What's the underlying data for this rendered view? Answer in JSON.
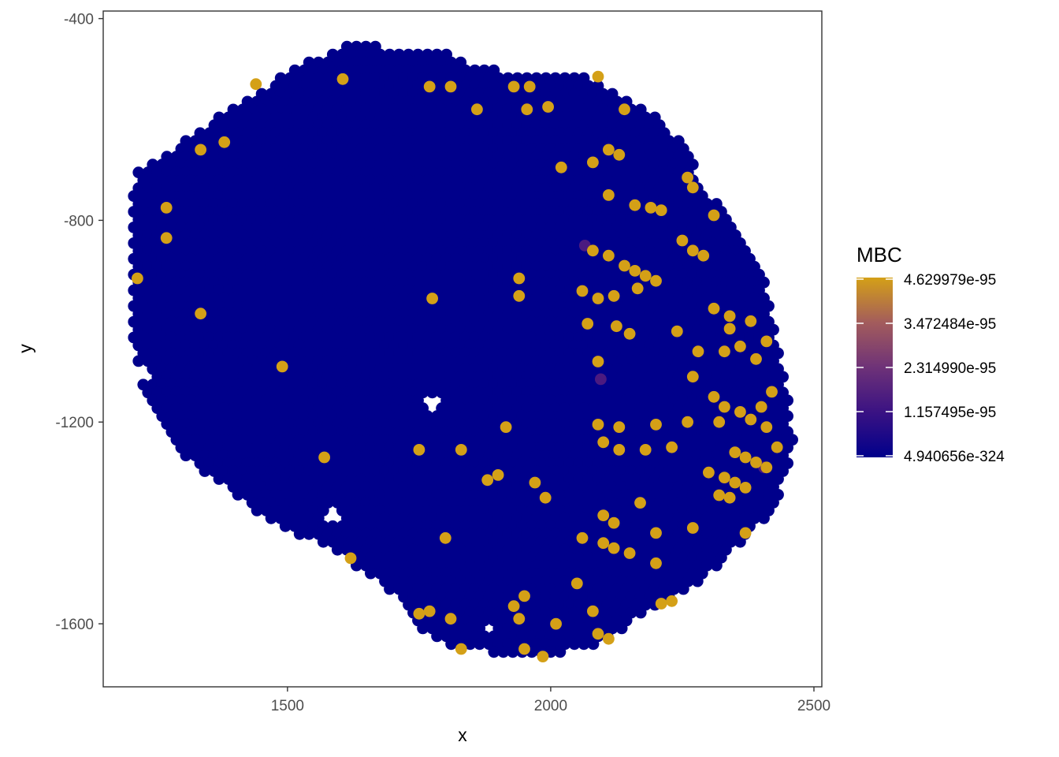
{
  "chart_data": {
    "type": "scatter",
    "title": "",
    "xlabel": "x",
    "ylabel": "y",
    "xlim": [
      1150,
      2515
    ],
    "ylim": [
      -1725,
      -385
    ],
    "x_ticks": [
      1500,
      2000,
      2500
    ],
    "x_tick_labels": [
      "1500",
      "2000",
      "2500"
    ],
    "y_ticks": [
      -400,
      -800,
      -1200,
      -1600
    ],
    "y_tick_labels": [
      "-400",
      "-800",
      "-1200",
      "-1600"
    ],
    "grid": false,
    "panel_border": true,
    "colors": {
      "low": "#00008B",
      "high": "#D4A017"
    },
    "legend": {
      "title": "MBC",
      "placement": "right",
      "breaks": [
        "4.629979e-95",
        "3.472484e-95",
        "2.314990e-95",
        "1.157495e-95",
        "4.940656e-324"
      ]
    },
    "spot_spacing": 18,
    "tissue_outline": [
      [
        1210,
        -700
      ],
      [
        1280,
        -660
      ],
      [
        1360,
        -600
      ],
      [
        1440,
        -550
      ],
      [
        1500,
        -505
      ],
      [
        1560,
        -475
      ],
      [
        1640,
        -445
      ],
      [
        1720,
        -470
      ],
      [
        1790,
        -460
      ],
      [
        1860,
        -500
      ],
      [
        1960,
        -505
      ],
      [
        2060,
        -510
      ],
      [
        2150,
        -560
      ],
      [
        2210,
        -600
      ],
      [
        2260,
        -660
      ],
      [
        2290,
        -740
      ],
      [
        2330,
        -780
      ],
      [
        2380,
        -850
      ],
      [
        2405,
        -900
      ],
      [
        2420,
        -1000
      ],
      [
        2445,
        -1100
      ],
      [
        2460,
        -1230
      ],
      [
        2455,
        -1300
      ],
      [
        2420,
        -1370
      ],
      [
        2380,
        -1430
      ],
      [
        2330,
        -1470
      ],
      [
        2280,
        -1520
      ],
      [
        2220,
        -1560
      ],
      [
        2150,
        -1600
      ],
      [
        2090,
        -1640
      ],
      [
        2010,
        -1660
      ],
      [
        1940,
        -1670
      ],
      [
        1870,
        -1650
      ],
      [
        1800,
        -1640
      ],
      [
        1740,
        -1610
      ],
      [
        1700,
        -1540
      ],
      [
        1650,
        -1500
      ],
      [
        1600,
        -1460
      ],
      [
        1540,
        -1430
      ],
      [
        1470,
        -1400
      ],
      [
        1400,
        -1340
      ],
      [
        1330,
        -1290
      ],
      [
        1270,
        -1230
      ],
      [
        1220,
        -1120
      ],
      [
        1200,
        -1000
      ],
      [
        1200,
        -850
      ]
    ],
    "holes": [
      {
        "x": 1772,
        "y": -1163,
        "r": 14
      },
      {
        "x": 1233,
        "y": -1105,
        "r": 14
      },
      {
        "x": 1882,
        "y": -1610,
        "r": 16
      },
      {
        "x": 1583,
        "y": -1388,
        "r": 14
      }
    ],
    "high_points": [
      [
        1440,
        -530
      ],
      [
        1605,
        -520
      ],
      [
        1770,
        -535
      ],
      [
        1810,
        -535
      ],
      [
        1930,
        -535
      ],
      [
        1960,
        -535
      ],
      [
        2090,
        -515
      ],
      [
        1860,
        -580
      ],
      [
        1955,
        -580
      ],
      [
        1995,
        -575
      ],
      [
        2140,
        -580
      ],
      [
        1335,
        -660
      ],
      [
        1380,
        -645
      ],
      [
        1270,
        -775
      ],
      [
        1270,
        -835
      ],
      [
        2020,
        -695
      ],
      [
        2080,
        -685
      ],
      [
        2110,
        -660
      ],
      [
        2130,
        -670
      ],
      [
        2260,
        -715
      ],
      [
        2270,
        -735
      ],
      [
        2110,
        -750
      ],
      [
        2160,
        -770
      ],
      [
        2190,
        -775
      ],
      [
        2210,
        -780
      ],
      [
        2310,
        -790
      ],
      [
        2250,
        -840
      ],
      [
        2270,
        -860
      ],
      [
        2290,
        -870
      ],
      [
        2080,
        -860
      ],
      [
        2110,
        -870
      ],
      [
        2140,
        -890
      ],
      [
        2160,
        -900
      ],
      [
        2180,
        -910
      ],
      [
        2200,
        -920
      ],
      [
        1215,
        -915
      ],
      [
        1940,
        -915
      ],
      [
        1940,
        -950
      ],
      [
        1775,
        -955
      ],
      [
        2060,
        -940
      ],
      [
        2090,
        -955
      ],
      [
        2120,
        -950
      ],
      [
        2165,
        -935
      ],
      [
        2310,
        -975
      ],
      [
        2340,
        -990
      ],
      [
        2380,
        -1000
      ],
      [
        2410,
        -1040
      ],
      [
        2360,
        -1050
      ],
      [
        2330,
        -1060
      ],
      [
        1335,
        -985
      ],
      [
        2070,
        -1005
      ],
      [
        2125,
        -1010
      ],
      [
        2150,
        -1025
      ],
      [
        2240,
        -1020
      ],
      [
        2340,
        -1015
      ],
      [
        2280,
        -1060
      ],
      [
        2090,
        -1080
      ],
      [
        2390,
        -1075
      ],
      [
        1490,
        -1090
      ],
      [
        2270,
        -1110
      ],
      [
        2420,
        -1140
      ],
      [
        2310,
        -1150
      ],
      [
        2330,
        -1170
      ],
      [
        2360,
        -1180
      ],
      [
        2380,
        -1195
      ],
      [
        2400,
        -1170
      ],
      [
        2410,
        -1210
      ],
      [
        2320,
        -1200
      ],
      [
        2260,
        -1200
      ],
      [
        2200,
        -1205
      ],
      [
        2090,
        -1205
      ],
      [
        2130,
        -1210
      ],
      [
        1915,
        -1210
      ],
      [
        2230,
        -1250
      ],
      [
        2430,
        -1250
      ],
      [
        2350,
        -1260
      ],
      [
        2370,
        -1270
      ],
      [
        2390,
        -1280
      ],
      [
        2410,
        -1290
      ],
      [
        2330,
        -1310
      ],
      [
        2350,
        -1320
      ],
      [
        2370,
        -1330
      ],
      [
        2340,
        -1350
      ],
      [
        2320,
        -1345
      ],
      [
        2300,
        -1300
      ],
      [
        1750,
        -1255
      ],
      [
        1830,
        -1255
      ],
      [
        2100,
        -1240
      ],
      [
        2130,
        -1255
      ],
      [
        2180,
        -1255
      ],
      [
        1570,
        -1270
      ],
      [
        1880,
        -1315
      ],
      [
        1900,
        -1305
      ],
      [
        1970,
        -1320
      ],
      [
        1990,
        -1350
      ],
      [
        2170,
        -1360
      ],
      [
        2100,
        -1385
      ],
      [
        2120,
        -1400
      ],
      [
        2200,
        -1420
      ],
      [
        1800,
        -1430
      ],
      [
        2060,
        -1430
      ],
      [
        2100,
        -1440
      ],
      [
        2120,
        -1450
      ],
      [
        2150,
        -1460
      ],
      [
        2270,
        -1410
      ],
      [
        2370,
        -1420
      ],
      [
        1620,
        -1470
      ],
      [
        2200,
        -1480
      ],
      [
        2050,
        -1520
      ],
      [
        1950,
        -1545
      ],
      [
        2080,
        -1575
      ],
      [
        2210,
        -1560
      ],
      [
        2230,
        -1555
      ],
      [
        1750,
        -1580
      ],
      [
        1770,
        -1575
      ],
      [
        1810,
        -1590
      ],
      [
        1930,
        -1565
      ],
      [
        1940,
        -1590
      ],
      [
        2010,
        -1600
      ],
      [
        2090,
        -1620
      ],
      [
        2110,
        -1630
      ],
      [
        1830,
        -1650
      ],
      [
        1950,
        -1650
      ],
      [
        1985,
        -1665
      ]
    ],
    "mid_points": [
      [
        2065,
        -850
      ],
      [
        2095,
        -1115
      ],
      [
        2405,
        -1290
      ]
    ]
  }
}
